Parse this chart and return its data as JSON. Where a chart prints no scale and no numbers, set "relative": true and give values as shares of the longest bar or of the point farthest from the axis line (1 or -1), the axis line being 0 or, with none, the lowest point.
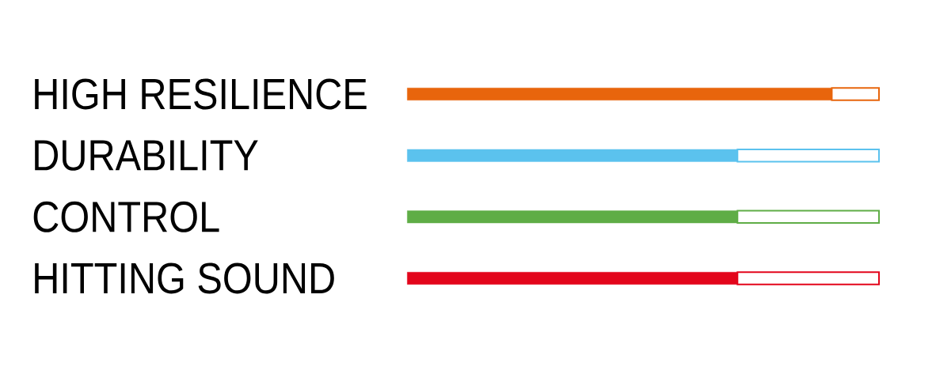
{
  "chart_data": {
    "type": "bar",
    "orientation": "horizontal",
    "stacked": true,
    "relative": true,
    "categories": [
      "HIGH RESILIENCE",
      "DURABILITY",
      "CONTROL",
      "HITTING SOUND"
    ],
    "series": [
      {
        "colors": [
          "#e8650c",
          "#5bc2ee",
          "#5fad46",
          "#e3051b"
        ],
        "values": [
          0.9,
          0.7,
          0.7,
          0.7
        ]
      },
      {
        "colors": [
          "#e8650c",
          "#5bc2ee",
          "#5fad46",
          "#e3051b"
        ],
        "values": [
          0.1,
          0.3,
          0.3,
          0.3
        ]
      }
    ]
  }
}
